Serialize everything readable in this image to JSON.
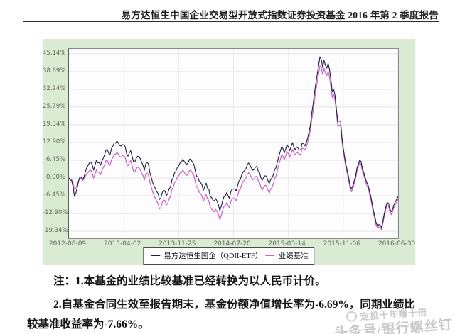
{
  "header": {
    "title": "易方达恒生中国企业交易型开放式指数证券投资基金 2016 年第 2 季度报告"
  },
  "chart_data": {
    "type": "line",
    "title": "",
    "xlabel": "",
    "ylabel": "",
    "grid": true,
    "legend_position": "bottom",
    "x_tick_labels": [
      "2012-08-09",
      "2013-04-02",
      "2013-11-25",
      "2014-07-20",
      "2015-03-14",
      "2015-11-06",
      "2016-06-30"
    ],
    "y_tick_labels": [
      "45.14%",
      "38.69%",
      "32.24%",
      "25.79%",
      "19.34%",
      "12.90%",
      "6.45%",
      "0.00%",
      "-6.45%",
      "-12.90%",
      "-19.34%"
    ],
    "y_tick_values": [
      45.14,
      38.69,
      32.24,
      25.79,
      19.34,
      12.9,
      6.45,
      0.0,
      -6.45,
      -12.9,
      -19.34
    ],
    "ylim": [
      -21.9,
      46.9
    ],
    "series": [
      {
        "name": "易方达恒生国企（QDII-ETF）",
        "color": "#1c1c42",
        "final_value_pct": -6.69,
        "keypoints": [
          [
            0.0,
            0.0
          ],
          [
            0.01,
            -1.5
          ],
          [
            0.018,
            -7.3
          ],
          [
            0.027,
            -2.0
          ],
          [
            0.035,
            0.5
          ],
          [
            0.045,
            -0.5
          ],
          [
            0.055,
            4.5
          ],
          [
            0.065,
            6.0
          ],
          [
            0.075,
            3.5
          ],
          [
            0.085,
            6.5
          ],
          [
            0.095,
            5.0
          ],
          [
            0.105,
            8.0
          ],
          [
            0.115,
            10.5
          ],
          [
            0.125,
            9.0
          ],
          [
            0.135,
            12.0
          ],
          [
            0.148,
            13.8
          ],
          [
            0.158,
            11.5
          ],
          [
            0.168,
            12.5
          ],
          [
            0.178,
            8.0
          ],
          [
            0.188,
            9.5
          ],
          [
            0.198,
            5.5
          ],
          [
            0.208,
            8.5
          ],
          [
            0.218,
            6.5
          ],
          [
            0.228,
            3.0
          ],
          [
            0.238,
            6.0
          ],
          [
            0.248,
            1.5
          ],
          [
            0.258,
            -2.5
          ],
          [
            0.268,
            -5.5
          ],
          [
            0.278,
            -8.0
          ],
          [
            0.288,
            -4.0
          ],
          [
            0.298,
            -6.5
          ],
          [
            0.308,
            -3.0
          ],
          [
            0.318,
            0.5
          ],
          [
            0.328,
            3.5
          ],
          [
            0.338,
            5.5
          ],
          [
            0.348,
            6.8
          ],
          [
            0.358,
            4.5
          ],
          [
            0.368,
            6.5
          ],
          [
            0.378,
            5.5
          ],
          [
            0.388,
            1.0
          ],
          [
            0.398,
            -1.5
          ],
          [
            0.408,
            -4.0
          ],
          [
            0.418,
            -2.0
          ],
          [
            0.428,
            -6.0
          ],
          [
            0.438,
            -8.5
          ],
          [
            0.448,
            -7.0
          ],
          [
            0.458,
            -11.8
          ],
          [
            0.468,
            -8.0
          ],
          [
            0.478,
            -5.5
          ],
          [
            0.488,
            -7.0
          ],
          [
            0.498,
            -3.0
          ],
          [
            0.508,
            -5.0
          ],
          [
            0.518,
            -1.0
          ],
          [
            0.528,
            2.0
          ],
          [
            0.538,
            4.0
          ],
          [
            0.548,
            5.5
          ],
          [
            0.558,
            3.0
          ],
          [
            0.568,
            4.5
          ],
          [
            0.578,
            1.5
          ],
          [
            0.588,
            -0.5
          ],
          [
            0.598,
            1.5
          ],
          [
            0.608,
            -2.0
          ],
          [
            0.618,
            0.5
          ],
          [
            0.628,
            3.5
          ],
          [
            0.638,
            8.0
          ],
          [
            0.648,
            12.0
          ],
          [
            0.655,
            9.0
          ],
          [
            0.662,
            12.5
          ],
          [
            0.67,
            10.0
          ],
          [
            0.678,
            13.0
          ],
          [
            0.686,
            10.5
          ],
          [
            0.694,
            12.0
          ],
          [
            0.702,
            9.5
          ],
          [
            0.71,
            13.5
          ],
          [
            0.718,
            11.0
          ],
          [
            0.726,
            14.5
          ],
          [
            0.734,
            20.0
          ],
          [
            0.742,
            27.0
          ],
          [
            0.75,
            34.0
          ],
          [
            0.758,
            41.0
          ],
          [
            0.764,
            44.8
          ],
          [
            0.77,
            40.0
          ],
          [
            0.776,
            43.5
          ],
          [
            0.782,
            38.5
          ],
          [
            0.788,
            42.0
          ],
          [
            0.794,
            37.0
          ],
          [
            0.8,
            31.0
          ],
          [
            0.806,
            33.5
          ],
          [
            0.812,
            26.0
          ],
          [
            0.818,
            19.0
          ],
          [
            0.824,
            22.0
          ],
          [
            0.83,
            13.0
          ],
          [
            0.836,
            8.5
          ],
          [
            0.842,
            4.0
          ],
          [
            0.848,
            1.0
          ],
          [
            0.854,
            -2.5
          ],
          [
            0.86,
            -4.5
          ],
          [
            0.866,
            -1.5
          ],
          [
            0.872,
            1.5
          ],
          [
            0.878,
            4.5
          ],
          [
            0.884,
            7.0
          ],
          [
            0.89,
            4.5
          ],
          [
            0.896,
            2.0
          ],
          [
            0.902,
            0.0
          ],
          [
            0.908,
            -2.5
          ],
          [
            0.914,
            -5.5
          ],
          [
            0.92,
            -9.0
          ],
          [
            0.926,
            -12.5
          ],
          [
            0.932,
            -15.5
          ],
          [
            0.938,
            -17.2
          ],
          [
            0.944,
            -16.0
          ],
          [
            0.95,
            -17.8
          ],
          [
            0.956,
            -14.0
          ],
          [
            0.962,
            -11.0
          ],
          [
            0.968,
            -8.8
          ],
          [
            0.974,
            -10.5
          ],
          [
            0.98,
            -12.8
          ],
          [
            0.986,
            -10.0
          ],
          [
            0.992,
            -8.5
          ],
          [
            1.0,
            -6.7
          ]
        ]
      },
      {
        "name": "业绩基准",
        "color": "#cf5ec6",
        "final_value_pct": -7.66,
        "keypoints": [
          [
            0.0,
            0.0
          ],
          [
            0.01,
            -1.0
          ],
          [
            0.018,
            -4.5
          ],
          [
            0.027,
            -1.5
          ],
          [
            0.035,
            0.0
          ],
          [
            0.045,
            -1.0
          ],
          [
            0.055,
            2.0
          ],
          [
            0.065,
            3.0
          ],
          [
            0.075,
            0.5
          ],
          [
            0.085,
            3.0
          ],
          [
            0.095,
            1.5
          ],
          [
            0.105,
            4.5
          ],
          [
            0.115,
            6.5
          ],
          [
            0.125,
            5.0
          ],
          [
            0.135,
            8.0
          ],
          [
            0.148,
            9.6
          ],
          [
            0.158,
            7.5
          ],
          [
            0.168,
            8.5
          ],
          [
            0.178,
            4.5
          ],
          [
            0.188,
            6.0
          ],
          [
            0.198,
            2.0
          ],
          [
            0.208,
            4.5
          ],
          [
            0.218,
            2.5
          ],
          [
            0.228,
            -0.5
          ],
          [
            0.238,
            2.0
          ],
          [
            0.248,
            -2.0
          ],
          [
            0.258,
            -6.0
          ],
          [
            0.268,
            -9.0
          ],
          [
            0.278,
            -11.5
          ],
          [
            0.288,
            -7.5
          ],
          [
            0.298,
            -10.0
          ],
          [
            0.308,
            -6.5
          ],
          [
            0.318,
            -3.0
          ],
          [
            0.328,
            0.0
          ],
          [
            0.338,
            1.8
          ],
          [
            0.348,
            2.8
          ],
          [
            0.358,
            0.5
          ],
          [
            0.368,
            2.5
          ],
          [
            0.378,
            1.5
          ],
          [
            0.388,
            -3.0
          ],
          [
            0.398,
            -5.5
          ],
          [
            0.408,
            -8.0
          ],
          [
            0.418,
            -6.0
          ],
          [
            0.428,
            -10.0
          ],
          [
            0.438,
            -12.5
          ],
          [
            0.448,
            -11.0
          ],
          [
            0.458,
            -15.0
          ],
          [
            0.468,
            -11.5
          ],
          [
            0.478,
            -9.0
          ],
          [
            0.488,
            -10.5
          ],
          [
            0.498,
            -6.5
          ],
          [
            0.508,
            -8.5
          ],
          [
            0.518,
            -4.5
          ],
          [
            0.528,
            -1.5
          ],
          [
            0.538,
            0.5
          ],
          [
            0.548,
            2.0
          ],
          [
            0.558,
            -0.5
          ],
          [
            0.568,
            1.0
          ],
          [
            0.578,
            -2.0
          ],
          [
            0.588,
            -4.0
          ],
          [
            0.598,
            -2.0
          ],
          [
            0.608,
            -5.5
          ],
          [
            0.618,
            -3.0
          ],
          [
            0.628,
            0.5
          ],
          [
            0.638,
            5.0
          ],
          [
            0.648,
            9.0
          ],
          [
            0.655,
            6.5
          ],
          [
            0.662,
            10.0
          ],
          [
            0.67,
            7.5
          ],
          [
            0.678,
            10.5
          ],
          [
            0.686,
            8.5
          ],
          [
            0.694,
            10.0
          ],
          [
            0.702,
            8.0
          ],
          [
            0.71,
            11.5
          ],
          [
            0.718,
            9.5
          ],
          [
            0.726,
            13.0
          ],
          [
            0.734,
            18.0
          ],
          [
            0.742,
            24.5
          ],
          [
            0.75,
            31.5
          ],
          [
            0.758,
            38.0
          ],
          [
            0.764,
            41.5
          ],
          [
            0.77,
            37.5
          ],
          [
            0.776,
            40.5
          ],
          [
            0.782,
            36.0
          ],
          [
            0.788,
            39.0
          ],
          [
            0.794,
            34.5
          ],
          [
            0.8,
            29.0
          ],
          [
            0.806,
            31.5
          ],
          [
            0.812,
            24.5
          ],
          [
            0.818,
            17.5
          ],
          [
            0.824,
            20.5
          ],
          [
            0.83,
            12.0
          ],
          [
            0.836,
            7.5
          ],
          [
            0.842,
            3.0
          ],
          [
            0.848,
            0.0
          ],
          [
            0.854,
            -3.5
          ],
          [
            0.86,
            -5.5
          ],
          [
            0.866,
            -2.5
          ],
          [
            0.872,
            0.5
          ],
          [
            0.878,
            3.5
          ],
          [
            0.884,
            6.0
          ],
          [
            0.89,
            3.5
          ],
          [
            0.896,
            1.0
          ],
          [
            0.902,
            -1.0
          ],
          [
            0.908,
            -3.5
          ],
          [
            0.914,
            -6.5
          ],
          [
            0.92,
            -10.0
          ],
          [
            0.926,
            -13.5
          ],
          [
            0.932,
            -16.5
          ],
          [
            0.938,
            -18.0
          ],
          [
            0.944,
            -17.0
          ],
          [
            0.95,
            -18.6
          ],
          [
            0.956,
            -15.0
          ],
          [
            0.962,
            -12.0
          ],
          [
            0.968,
            -9.8
          ],
          [
            0.974,
            -11.5
          ],
          [
            0.98,
            -13.8
          ],
          [
            0.986,
            -11.0
          ],
          [
            0.992,
            -9.5
          ],
          [
            1.0,
            -7.7
          ]
        ]
      }
    ]
  },
  "notes": {
    "line1": "注：1.本基金的业绩比较基准已经转换为以人民币计价。",
    "line2": "2.自基金合同生效至报告期末，基金份额净值增长率为-6.69%，同期业绩比",
    "line3": "较基准收益率为-7.66%。"
  },
  "watermark": {
    "line1": "定投十年赚十倍",
    "line2": "头条号/银行螺丝钉"
  },
  "colors": {
    "chart_background": "#d9ecd3",
    "plot_background": "#fdfdfd",
    "grid_line": "#e4e4e4",
    "fund_line": "#1c1c42",
    "benchmark_line": "#cf5ec6",
    "axis_text": "#68685a"
  }
}
